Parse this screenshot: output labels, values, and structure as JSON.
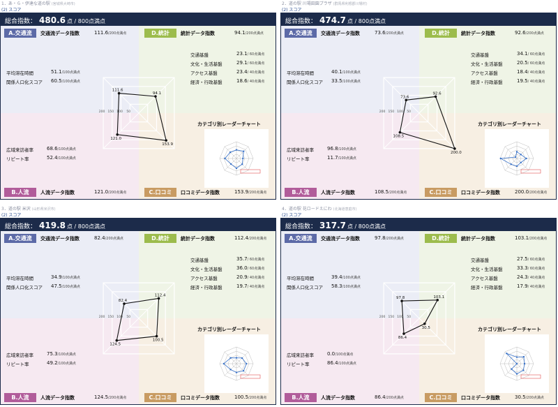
{
  "colors": {
    "header_bg": "#1c2b4a",
    "traffic": "#5c6aa7",
    "stats": "#9cbc4c",
    "people": "#b15c9a",
    "reviews": "#c89b62",
    "mini_series": "#3a73c9",
    "mini_highlight": "#e05050"
  },
  "labels": {
    "section": "(2) スコア",
    "total_label": "総合指数：",
    "total_unit": "点 / 800点満点",
    "badge_a": "A.交通流",
    "badge_d": "D.統計",
    "badge_b": "B.人流",
    "badge_c": "C.口コミ",
    "traffic_index": "交通流データ指数",
    "stats_index": "統計データ指数",
    "people_index": "人流データ指数",
    "review_index": "口コミデータ指数",
    "avg_stay": "平均滞在時間",
    "related_pop": "関係人口化スコア",
    "wide_visit": "広域来訪者率",
    "repeat": "リピート率",
    "traffic_base": "交通基盤",
    "culture_base": "文化・生活基盤",
    "access_base": "アクセス基盤",
    "economy_base": "経済・行政基盤",
    "unit_200": "/200点満点",
    "unit_100": "/100点満点",
    "unit_60": "/ 60点満点",
    "unit_40": "/ 40点満点",
    "mini_title": "カテゴリ別レーダーチャート"
  },
  "axis_ticks": [
    "200",
    "150",
    "100",
    "50"
  ],
  "chart_data": [
    {
      "type": "radar",
      "title": "1．あ・ら・伊達な道の駅",
      "subtitle": "(宮城県大崎市)",
      "total": "480.6",
      "traffic_index": "111.6",
      "stats_index": "94.1",
      "people_index": "121.0",
      "review_index": "153.9",
      "avg_stay": "51.1",
      "related_pop": "60.5",
      "wide_visit": "68.6",
      "repeat": "52.4",
      "traffic_base": "23.1",
      "culture_base": "29.1",
      "access_base": "23.4",
      "economy_base": "18.6",
      "axes": [
        "A.交通流",
        "D.統計",
        "C.口コミ",
        "B.人流"
      ],
      "values": [
        111.6,
        94.1,
        153.9,
        121.0
      ],
      "value_labels": [
        "111.6",
        "94.1",
        "153.9",
        "121.0"
      ],
      "rmax": 200
    },
    {
      "type": "radar",
      "title": "2．道の駅 川場田園プラザ",
      "subtitle": "(群馬県利根郡川場村)",
      "total": "474.7",
      "traffic_index": "73.6",
      "stats_index": "92.6",
      "people_index": "108.5",
      "review_index": "200.0",
      "avg_stay": "40.1",
      "related_pop": "33.5",
      "wide_visit": "96.8",
      "repeat": "11.7",
      "traffic_base": "34.1",
      "culture_base": "20.5",
      "access_base": "18.4",
      "economy_base": "19.5",
      "axes": [
        "A.交通流",
        "D.統計",
        "C.口コミ",
        "B.人流"
      ],
      "values": [
        73.6,
        92.6,
        200.0,
        108.5
      ],
      "value_labels": [
        "73.6",
        "92.6",
        "200.0",
        "108.5"
      ],
      "rmax": 200
    },
    {
      "type": "radar",
      "title": "3．道の駅 米沢",
      "subtitle": "(山形県米沢市)",
      "total": "419.8",
      "traffic_index": "82.4",
      "stats_index": "112.4",
      "people_index": "124.5",
      "review_index": "100.5",
      "avg_stay": "34.9",
      "related_pop": "47.5",
      "wide_visit": "75.3",
      "repeat": "49.2",
      "traffic_base": "35.7",
      "culture_base": "36.0",
      "access_base": "20.9",
      "economy_base": "19.7",
      "axes": [
        "A.交通流",
        "D.統計",
        "C.口コミ",
        "B.人流"
      ],
      "values": [
        82.4,
        112.4,
        100.5,
        124.5
      ],
      "value_labels": [
        "82.4",
        "112.4",
        "100.5",
        "124.5"
      ],
      "rmax": 200
    },
    {
      "type": "radar",
      "title": "4．道の駅 花ロードえにわ",
      "subtitle": "(北海道恵庭市)",
      "total": "317.7",
      "traffic_index": "97.8",
      "stats_index": "103.1",
      "people_index": "86.4",
      "review_index": "30.5",
      "avg_stay": "39.4",
      "related_pop": "58.3",
      "wide_visit": "0.0",
      "repeat": "86.4",
      "traffic_base": "27.5",
      "culture_base": "33.3",
      "access_base": "24.3",
      "economy_base": "17.9",
      "axes": [
        "A.交通流",
        "D.統計",
        "C.口コミ",
        "B.人流"
      ],
      "values": [
        97.8,
        103.1,
        30.5,
        86.4
      ],
      "value_labels": [
        "97.8",
        "103.1",
        "30.5",
        "86.4"
      ],
      "rmax": 200
    }
  ]
}
